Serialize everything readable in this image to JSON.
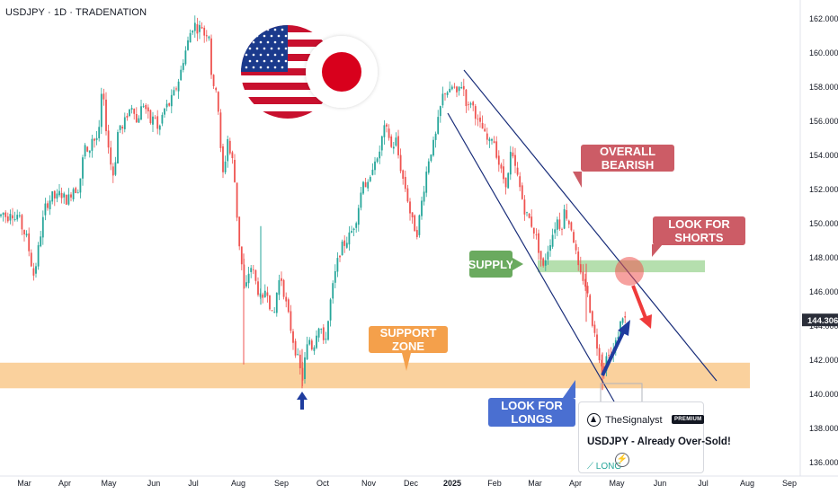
{
  "header": {
    "symbol_line": "USDJPY · 1D · TRADENATION"
  },
  "chart_data": {
    "type": "candlestick",
    "title": "USDJPY · 1D · TRADENATION",
    "x_ticks": [
      "Mar",
      "Apr",
      "May",
      "Jun",
      "Jul",
      "Aug",
      "Sep",
      "Oct",
      "Nov",
      "Dec",
      "2025",
      "Feb",
      "Mar",
      "Apr",
      "May",
      "Jun",
      "Jul",
      "Aug",
      "Sep"
    ],
    "y_ticks": [
      "136.000",
      "138.000",
      "140.000",
      "142.000",
      "144.000",
      "146.000",
      "148.000",
      "150.000",
      "152.000",
      "154.000",
      "156.000",
      "158.000",
      "160.000",
      "162.000"
    ],
    "ylim": [
      135.5,
      162.6
    ],
    "last_price": "144.306",
    "series": [
      {
        "key": "price_path",
        "values": [
          [
            0,
            150.4
          ],
          [
            4,
            150.6
          ],
          [
            8,
            150.2
          ],
          [
            12,
            150.8
          ],
          [
            16,
            150.2
          ],
          [
            20,
            150.5
          ],
          [
            25,
            149.6
          ],
          [
            30,
            149.1
          ],
          [
            34,
            147.8
          ],
          [
            38,
            146.8
          ],
          [
            42,
            148.3
          ],
          [
            46,
            149.6
          ],
          [
            50,
            150.9
          ],
          [
            54,
            151.2
          ],
          [
            58,
            151.6
          ],
          [
            62,
            151.4
          ],
          [
            66,
            151.7
          ],
          [
            70,
            151.6
          ],
          [
            74,
            151.3
          ],
          [
            78,
            151.6
          ],
          [
            82,
            152.1
          ],
          [
            86,
            151.8
          ],
          [
            90,
            152.8
          ],
          [
            94,
            154.6
          ],
          [
            98,
            153.8
          ],
          [
            102,
            155.0
          ],
          [
            106,
            154.8
          ],
          [
            110,
            155.2
          ],
          [
            113,
            157.6
          ],
          [
            116,
            156.8
          ],
          [
            119,
            155.0
          ],
          [
            122,
            154.0
          ],
          [
            125,
            152.6
          ],
          [
            128,
            153.5
          ],
          [
            132,
            155.9
          ],
          [
            136,
            155.4
          ],
          [
            140,
            156.2
          ],
          [
            144,
            156.6
          ],
          [
            148,
            157.0
          ],
          [
            152,
            155.8
          ],
          [
            156,
            156.6
          ],
          [
            160,
            157.0
          ],
          [
            164,
            156.4
          ],
          [
            168,
            155.8
          ],
          [
            172,
            156.4
          ],
          [
            176,
            155.2
          ],
          [
            180,
            156.2
          ],
          [
            184,
            156.8
          ],
          [
            188,
            156.9
          ],
          [
            192,
            157.4
          ],
          [
            196,
            157.9
          ],
          [
            200,
            158.6
          ],
          [
            204,
            159.6
          ],
          [
            208,
            160.4
          ],
          [
            212,
            161.2
          ],
          [
            216,
            161.7
          ],
          [
            220,
            161.3
          ],
          [
            224,
            161.6
          ],
          [
            228,
            160.9
          ],
          [
            232,
            161.4
          ],
          [
            235,
            158.8
          ],
          [
            238,
            157.6
          ],
          [
            241,
            158.1
          ],
          [
            244,
            155.6
          ],
          [
            247,
            152.6
          ],
          [
            250,
            153.4
          ],
          [
            253,
            155.0
          ],
          [
            256,
            154.0
          ],
          [
            259,
            153.6
          ],
          [
            262,
            151.8
          ],
          [
            265,
            149.2
          ],
          [
            268,
            148.0
          ],
          [
            272,
            145.7
          ],
          [
            276,
            147.0
          ],
          [
            280,
            147.5
          ],
          [
            284,
            146.6
          ],
          [
            288,
            145.8
          ],
          [
            292,
            145.3
          ],
          [
            296,
            146.4
          ],
          [
            300,
            145.2
          ],
          [
            304,
            144.2
          ],
          [
            308,
            146.0
          ],
          [
            312,
            147.0
          ],
          [
            316,
            145.8
          ],
          [
            320,
            144.8
          ],
          [
            324,
            143.6
          ],
          [
            328,
            142.6
          ],
          [
            332,
            141.9
          ],
          [
            336,
            140.7
          ],
          [
            340,
            142.4
          ],
          [
            344,
            143.2
          ],
          [
            348,
            142.5
          ],
          [
            352,
            143.6
          ],
          [
            356,
            144.2
          ],
          [
            360,
            142.8
          ],
          [
            364,
            143.8
          ],
          [
            368,
            145.6
          ],
          [
            372,
            146.8
          ],
          [
            376,
            147.9
          ],
          [
            380,
            148.6
          ],
          [
            384,
            148.8
          ],
          [
            388,
            149.2
          ],
          [
            392,
            149.6
          ],
          [
            396,
            150.2
          ],
          [
            400,
            151.3
          ],
          [
            404,
            152.6
          ],
          [
            408,
            152.0
          ],
          [
            412,
            152.5
          ],
          [
            416,
            153.9
          ],
          [
            420,
            153.5
          ],
          [
            424,
            154.8
          ],
          [
            428,
            155.6
          ],
          [
            432,
            155.2
          ],
          [
            436,
            154.2
          ],
          [
            440,
            155.0
          ],
          [
            444,
            153.6
          ],
          [
            448,
            152.6
          ],
          [
            452,
            151.8
          ],
          [
            456,
            150.6
          ],
          [
            460,
            149.8
          ],
          [
            464,
            149.4
          ],
          [
            468,
            150.9
          ],
          [
            472,
            152.2
          ],
          [
            476,
            153.6
          ],
          [
            480,
            154.3
          ],
          [
            484,
            154.9
          ],
          [
            488,
            156.2
          ],
          [
            492,
            157.4
          ],
          [
            496,
            157.8
          ],
          [
            500,
            157.6
          ],
          [
            504,
            158.1
          ],
          [
            508,
            157.4
          ],
          [
            512,
            158.2
          ],
          [
            516,
            157.8
          ],
          [
            520,
            156.6
          ],
          [
            524,
            157.2
          ],
          [
            528,
            156.5
          ],
          [
            532,
            155.8
          ],
          [
            536,
            155.6
          ],
          [
            540,
            155.0
          ],
          [
            544,
            154.6
          ],
          [
            548,
            155.2
          ],
          [
            552,
            154.1
          ],
          [
            556,
            153.2
          ],
          [
            560,
            152.6
          ],
          [
            564,
            152.2
          ],
          [
            568,
            154.1
          ],
          [
            572,
            153.4
          ],
          [
            576,
            152.6
          ],
          [
            580,
            151.6
          ],
          [
            584,
            150.6
          ],
          [
            588,
            150.3
          ],
          [
            592,
            149.8
          ],
          [
            596,
            149.2
          ],
          [
            600,
            148.2
          ],
          [
            604,
            147.3
          ],
          [
            608,
            148.2
          ],
          [
            612,
            148.9
          ],
          [
            616,
            149.6
          ],
          [
            620,
            150.2
          ],
          [
            624,
            149.6
          ],
          [
            628,
            150.8
          ],
          [
            632,
            150.1
          ],
          [
            636,
            149.6
          ],
          [
            640,
            148.4
          ],
          [
            644,
            147.0
          ],
          [
            648,
            146.8
          ],
          [
            652,
            146.2
          ],
          [
            656,
            145.0
          ],
          [
            660,
            143.8
          ],
          [
            664,
            142.8
          ],
          [
            668,
            141.9
          ],
          [
            672,
            141.4
          ],
          [
            676,
            142.6
          ],
          [
            680,
            142.2
          ],
          [
            684,
            142.8
          ],
          [
            688,
            143.6
          ],
          [
            692,
            144.6
          ],
          [
            696,
            144.3
          ]
        ]
      }
    ],
    "zones": {
      "support_zone": {
        "from": 140.3,
        "to": 141.8,
        "label": "SUPPORT ZONE"
      },
      "supply": {
        "from": 147.1,
        "to": 147.8,
        "label": "SUPPLY"
      }
    },
    "annotations": [
      {
        "key": "overall_bearish",
        "text": "OVERALL BEARISH"
      },
      {
        "key": "look_for_shorts",
        "text": "LOOK FOR SHORTS"
      },
      {
        "key": "supply_label",
        "text": "SUPPLY"
      },
      {
        "key": "support_label",
        "text": "SUPPORT ZONE"
      },
      {
        "key": "look_for_longs",
        "text": "LOOK FOR LONGS"
      }
    ],
    "colors": {
      "up": "#26a69a",
      "down": "#ef5350",
      "support": "#f9c98c",
      "supply": "#a8d9a0",
      "channel": "#1a2e7a",
      "bearish_callout": "#cc5c66",
      "shorts_callout": "#cc5c66",
      "supply_callout": "#6aaa5f",
      "support_callout": "#f4a04b",
      "longs_callout": "#4a6fd1",
      "long_arrow": "#1f3c9e",
      "short_arrow": "#ef3b3b",
      "price_tag": "#2a2e39"
    }
  },
  "callouts": {
    "overall_bearish": "OVERALL BEARISH",
    "look_for_shorts": "LOOK FOR SHORTS",
    "supply": "SUPPLY",
    "support_zone": "SUPPORT ZONE",
    "look_for_longs": "LOOK FOR LONGS"
  },
  "idea_card": {
    "author": "TheSignalyst",
    "badge": "PREMIUM",
    "title": "USDJPY - Already Over-Sold!",
    "direction": "LONG"
  },
  "flags": [
    "us-flag-icon",
    "japan-flag-icon"
  ]
}
